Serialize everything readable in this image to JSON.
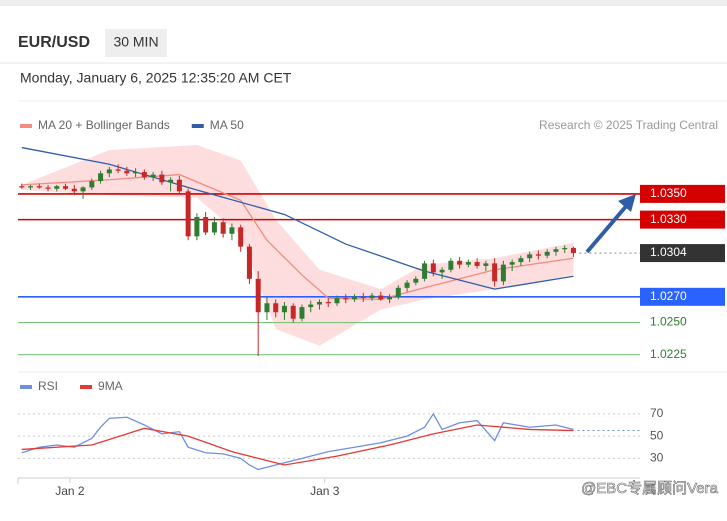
{
  "header": {
    "symbol": "EUR/USD",
    "timeframe": "30 MIN",
    "datetime": "Monday, January 6, 2025 12:35:20 AM CET"
  },
  "attribution": "Research © 2025 Trading Central",
  "watermark": "@EBC专属顾问Vera",
  "chart_data": [
    {
      "type": "candlestick",
      "xlim": [
        -0.2,
        70.6
      ],
      "ylim": [
        1.0217,
        1.0388
      ],
      "up_color": "#2e7d32",
      "down_color": "#c62828",
      "x": [
        0,
        1,
        2,
        3,
        4,
        5,
        6,
        7,
        8,
        9,
        10,
        11,
        12,
        13,
        14,
        15,
        16,
        17,
        18,
        19,
        20,
        21,
        22,
        23,
        24,
        25,
        26,
        27,
        28,
        29,
        30,
        31,
        32,
        33,
        34,
        35,
        36,
        37,
        38,
        39,
        40,
        41,
        42,
        43,
        44,
        45,
        46,
        47,
        48,
        49,
        50,
        51,
        52,
        53,
        54,
        55,
        56,
        57,
        58,
        59,
        60,
        61,
        62,
        63
      ],
      "candles": [
        [
          1.0356,
          1.0358,
          1.0354,
          1.0355
        ],
        [
          1.0355,
          1.0357,
          1.0353,
          1.0356
        ],
        [
          1.0356,
          1.0358,
          1.0354,
          1.0355
        ],
        [
          1.0355,
          1.0357,
          1.0352,
          1.0354
        ],
        [
          1.0354,
          1.0357,
          1.0352,
          1.0356
        ],
        [
          1.0356,
          1.0358,
          1.0353,
          1.0354
        ],
        [
          1.0354,
          1.0357,
          1.0349,
          1.0352
        ],
        [
          1.0352,
          1.0356,
          1.0346,
          1.0355
        ],
        [
          1.0355,
          1.0362,
          1.0353,
          1.036
        ],
        [
          1.036,
          1.0368,
          1.0358,
          1.0366
        ],
        [
          1.0366,
          1.0371,
          1.0363,
          1.0369
        ],
        [
          1.0369,
          1.0373,
          1.0366,
          1.0368
        ],
        [
          1.0368,
          1.0371,
          1.0364,
          1.0366
        ],
        [
          1.0366,
          1.037,
          1.0363,
          1.0367
        ],
        [
          1.0367,
          1.0369,
          1.0361,
          1.0363
        ],
        [
          1.0363,
          1.0367,
          1.036,
          1.0365
        ],
        [
          1.0365,
          1.0368,
          1.0357,
          1.0359
        ],
        [
          1.0359,
          1.0363,
          1.0352,
          1.0361
        ],
        [
          1.0361,
          1.0364,
          1.035,
          1.0352
        ],
        [
          1.0352,
          1.0354,
          1.0314,
          1.0317
        ],
        [
          1.0317,
          1.0335,
          1.0314,
          1.0332
        ],
        [
          1.0332,
          1.0336,
          1.0318,
          1.032
        ],
        [
          1.032,
          1.0332,
          1.0318,
          1.0328
        ],
        [
          1.0328,
          1.0331,
          1.0316,
          1.0319
        ],
        [
          1.0319,
          1.0327,
          1.0314,
          1.0324
        ],
        [
          1.0324,
          1.0326,
          1.0305,
          1.0309
        ],
        [
          1.0309,
          1.0311,
          1.028,
          1.0284
        ],
        [
          1.0284,
          1.029,
          1.0224,
          1.0258
        ],
        [
          1.0258,
          1.027,
          1.0252,
          1.0265
        ],
        [
          1.0265,
          1.0268,
          1.0254,
          1.0258
        ],
        [
          1.0258,
          1.0266,
          1.0252,
          1.0263
        ],
        [
          1.0263,
          1.0265,
          1.025,
          1.0253
        ],
        [
          1.0253,
          1.0264,
          1.0251,
          1.0262
        ],
        [
          1.0262,
          1.0267,
          1.0258,
          1.0264
        ],
        [
          1.0264,
          1.0268,
          1.026,
          1.0266
        ],
        [
          1.0266,
          1.0269,
          1.0262,
          1.0265
        ],
        [
          1.0265,
          1.0271,
          1.0263,
          1.0269
        ],
        [
          1.0269,
          1.0272,
          1.0265,
          1.0268
        ],
        [
          1.0268,
          1.0272,
          1.0266,
          1.027
        ],
        [
          1.027,
          1.0273,
          1.0266,
          1.0269
        ],
        [
          1.0269,
          1.0273,
          1.0267,
          1.0271
        ],
        [
          1.0271,
          1.0274,
          1.0267,
          1.0268
        ],
        [
          1.0268,
          1.0272,
          1.0265,
          1.027
        ],
        [
          1.027,
          1.0279,
          1.0268,
          1.0277
        ],
        [
          1.0277,
          1.0283,
          1.0274,
          1.0281
        ],
        [
          1.0281,
          1.0286,
          1.0279,
          1.0284
        ],
        [
          1.0284,
          1.0298,
          1.0282,
          1.0296
        ],
        [
          1.0296,
          1.0299,
          1.0286,
          1.0289
        ],
        [
          1.0289,
          1.0293,
          1.0284,
          1.0291
        ],
        [
          1.0291,
          1.03,
          1.0289,
          1.0298
        ],
        [
          1.0298,
          1.0301,
          1.0292,
          1.0295
        ],
        [
          1.0295,
          1.0299,
          1.0293,
          1.0297
        ],
        [
          1.0297,
          1.03,
          1.0292,
          1.0294
        ],
        [
          1.0294,
          1.0298,
          1.029,
          1.0296
        ],
        [
          1.0296,
          1.03,
          1.0278,
          1.0282
        ],
        [
          1.0282,
          1.0298,
          1.0279,
          1.0295
        ],
        [
          1.0295,
          1.0299,
          1.029,
          1.0297
        ],
        [
          1.0297,
          1.0302,
          1.0294,
          1.03
        ],
        [
          1.03,
          1.0305,
          1.0297,
          1.0303
        ],
        [
          1.0303,
          1.0306,
          1.0299,
          1.0302
        ],
        [
          1.0302,
          1.0307,
          1.03,
          1.0305
        ],
        [
          1.0305,
          1.0309,
          1.0302,
          1.0307
        ],
        [
          1.0307,
          1.031,
          1.0304,
          1.0308
        ],
        [
          1.0308,
          1.0309,
          1.0301,
          1.0304
        ]
      ],
      "series": [
        {
          "name": "MA 20 + Bollinger Bands",
          "color": "#f28b82",
          "x": [
            0,
            10,
            18,
            25,
            28,
            32,
            35,
            41,
            46,
            54,
            63
          ],
          "values": [
            1.0357,
            1.0361,
            1.0365,
            1.0345,
            1.0314,
            1.0287,
            1.0269,
            1.0268,
            1.0277,
            1.0291,
            1.03
          ],
          "band": {
            "color": "#fdd5d5",
            "x": [
              0,
              10,
              20,
              25,
              29,
              34,
              41,
              46,
              54,
              63
            ],
            "upper": [
              1.0357,
              1.0384,
              1.0388,
              1.0376,
              1.033,
              1.0291,
              1.0276,
              1.0295,
              1.03,
              1.0312
            ],
            "lower": [
              1.0353,
              1.0349,
              1.0347,
              1.0318,
              1.0245,
              1.0232,
              1.026,
              1.0268,
              1.0276,
              1.0287
            ]
          }
        },
        {
          "name": "MA 50",
          "color": "#2f5da8",
          "x": [
            0,
            10,
            20,
            30,
            37,
            46,
            54,
            63
          ],
          "values": [
            1.0386,
            1.0373,
            1.0353,
            1.0334,
            1.0311,
            1.029,
            1.0276,
            1.0286
          ]
        }
      ],
      "levels": [
        {
          "value": 1.035,
          "label": "1.0350",
          "color": "#d50000",
          "style": "box"
        },
        {
          "value": 1.033,
          "label": "1.0330",
          "color": "#d50000",
          "style": "box"
        },
        {
          "value": 1.0304,
          "label": "1.0304",
          "color": "#333333",
          "style": "current"
        },
        {
          "value": 1.027,
          "label": "1.0270",
          "color": "#2962ff",
          "style": "box"
        },
        {
          "value": 1.025,
          "label": "1.0250",
          "color": "#7cc47c",
          "style": "text"
        },
        {
          "value": 1.0225,
          "label": "1.0225",
          "color": "#7cc47c",
          "style": "text"
        }
      ]
    },
    {
      "type": "line",
      "xlim": [
        -0.2,
        70.6
      ],
      "ylim": [
        15,
        87
      ],
      "xticks": [
        {
          "value": 5.5,
          "label": "Jan 2"
        },
        {
          "value": 34.6,
          "label": "Jan 3"
        }
      ],
      "yticks": [
        30,
        50,
        70
      ],
      "grid": true,
      "series": [
        {
          "name": "RSI",
          "color": "#6f8fe0",
          "x": [
            0,
            2,
            4,
            6,
            8,
            9,
            10,
            12,
            14,
            16,
            18,
            19,
            21,
            23,
            25,
            26,
            27,
            29,
            32,
            35,
            38,
            41,
            44,
            46,
            47,
            48,
            50,
            52,
            54,
            55,
            58,
            61,
            63
          ],
          "values": [
            35,
            40,
            42,
            40,
            48,
            58,
            66,
            67,
            60,
            52,
            54,
            40,
            35,
            34,
            30,
            24,
            20,
            24,
            30,
            36,
            40,
            44,
            50,
            58,
            70,
            56,
            62,
            64,
            46,
            62,
            58,
            60,
            56
          ]
        },
        {
          "name": "9MA",
          "color": "#e53935",
          "x": [
            0,
            8,
            14,
            19,
            24,
            30,
            36,
            42,
            47,
            52,
            58,
            63
          ],
          "values": [
            38,
            42,
            57,
            50,
            36,
            24,
            32,
            42,
            52,
            60,
            56,
            55
          ]
        }
      ]
    }
  ]
}
